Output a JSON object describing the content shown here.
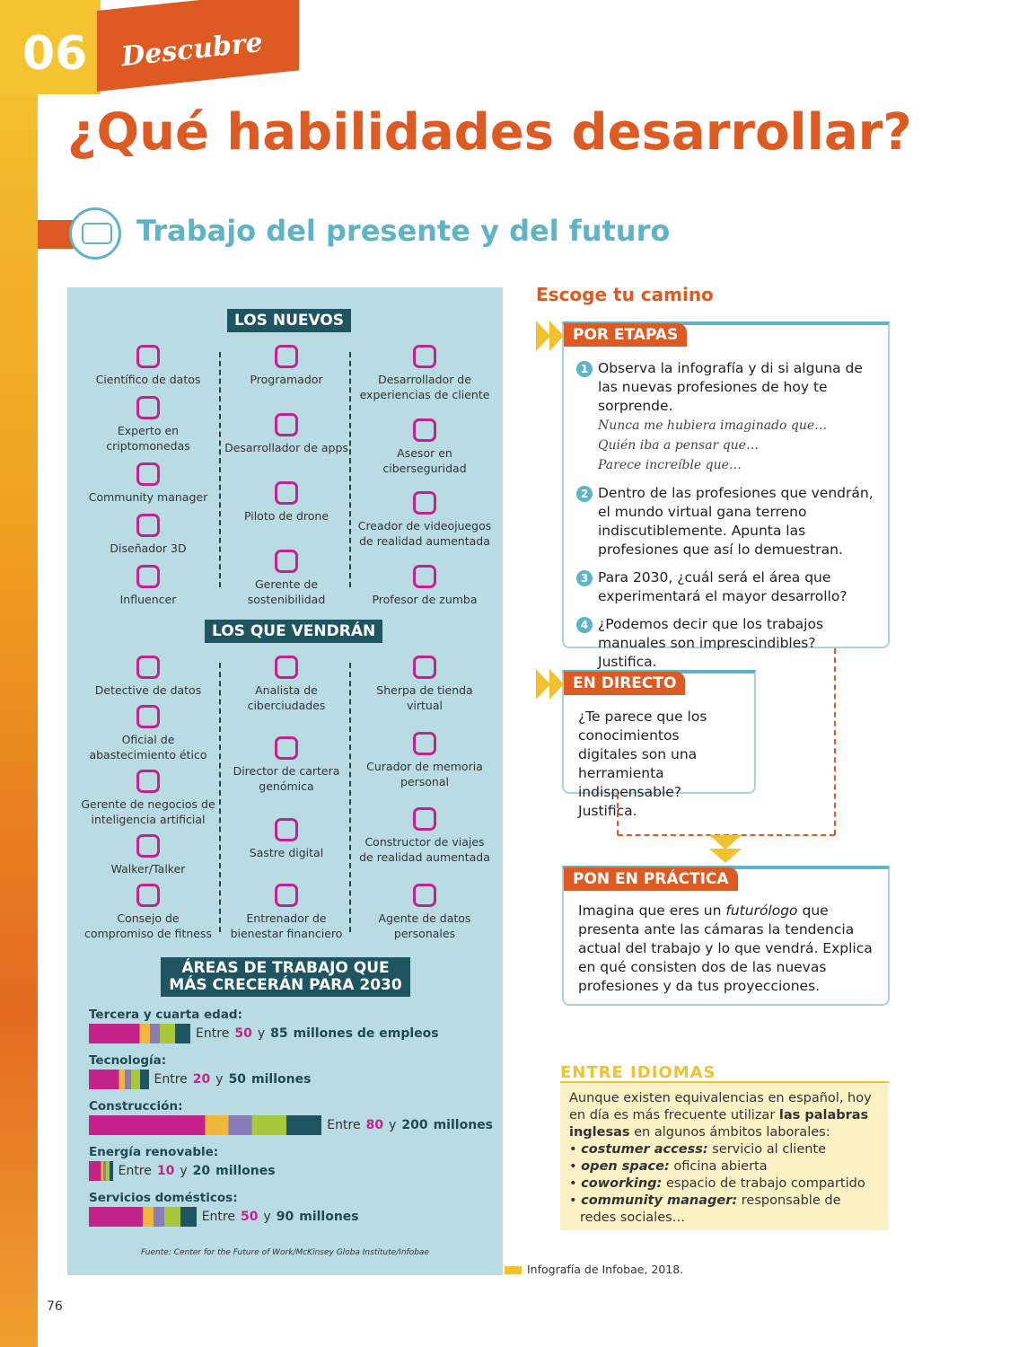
{
  "header": {
    "number": "06",
    "section": "Descubre",
    "title": "¿Qué habilidades desarrollar?"
  },
  "subtitle": "Trabajo del presente y del futuro",
  "infographic": {
    "nuevos": {
      "heading": "LOS NUEVOS",
      "columns": [
        [
          "Científico de datos",
          "Experto en criptomonedas",
          "Community manager",
          "Diseñador 3D",
          "Influencer"
        ],
        [
          "Programador",
          "Desarrollador de apps",
          "Piloto de drone",
          "Gerente de sostenibilidad"
        ],
        [
          "Desarrollador de experiencias de cliente",
          "Asesor en ciberseguridad",
          "Creador de videojuegos de realidad aumentada",
          "Profesor de zumba"
        ]
      ]
    },
    "vendran": {
      "heading": "LOS QUE VENDRÁN",
      "columns": [
        [
          "Detective de datos",
          "Oficial de abastecimiento ético",
          "Gerente de negocios de inteligencia artificial",
          "Walker/Talker",
          "Consejo de compromiso de fitness"
        ],
        [
          "Analista de ciberciudades",
          "Director de cartera genómica",
          "Sastre digital",
          "Entrenador de bienestar financiero"
        ],
        [
          "Sherpa de tienda virtual",
          "Curador de memoria personal",
          "Constructor de viajes de realidad aumentada",
          "Agente de datos personales"
        ]
      ]
    },
    "areas": {
      "heading": "ÁREAS DE TRABAJO QUE MÁS CRECERÁN PARA 2030",
      "rows": [
        {
          "label": "Tercera y cuarta edad:",
          "prefix": "Entre",
          "min": 50,
          "joiner": "y",
          "max": 85,
          "suffix": "millones de empleos"
        },
        {
          "label": "Tecnología:",
          "prefix": "Entre",
          "min": 20,
          "joiner": "y",
          "max": 50,
          "suffix": "millones"
        },
        {
          "label": "Construcción:",
          "prefix": "Entre",
          "min": 80,
          "joiner": "y",
          "max": 200,
          "suffix": "millones"
        },
        {
          "label": "Energía renovable:",
          "prefix": "Entre",
          "min": 10,
          "joiner": "y",
          "max": 20,
          "suffix": "millones"
        },
        {
          "label": "Servicios domésticos:",
          "prefix": "Entre",
          "min": 50,
          "joiner": "y",
          "max": 90,
          "suffix": "millones"
        }
      ]
    },
    "source": "Fuente: Center for the Future of Work/McKinsey Globa Institute/Infobae"
  },
  "activities": {
    "heading": "Escoge tu camino",
    "por_etapas": {
      "label": "POR ETAPAS",
      "items": [
        {
          "number": "1",
          "text": "Observa la infografía y di si alguna de las nuevas profesiones de hoy te sorprende.",
          "examples": [
            "Nunca me hubiera imaginado que…",
            "Quién iba a pensar que…",
            "Parece increíble que…"
          ]
        },
        {
          "number": "2",
          "text": "Dentro de las profesiones que vendrán, el mundo virtual gana terreno indiscutiblemente. Apunta las profesiones que así lo demuestran."
        },
        {
          "number": "3",
          "text": "Para 2030, ¿cuál será el área que experimentará el mayor desarrollo?"
        },
        {
          "number": "4",
          "text": "¿Podemos decir que los trabajos manuales son imprescindibles? Justifica."
        }
      ]
    },
    "en_directo": {
      "label": "EN DIRECTO",
      "text": "¿Te parece que los conocimientos digitales son una herramienta indispensable? Justifica."
    },
    "pon_en_practica": {
      "label": "PON EN PRÁCTICA",
      "text_before": "Imagina que eres un",
      "text_italic": "futurólogo",
      "text_after": "que presenta ante las cámaras la tendencia actual del trabajo y lo que vendrá. Explica en qué consisten dos de las nuevas profesiones y da tus proyecciones."
    }
  },
  "entre_idiomas": {
    "heading": "ENTRE IDIOMAS",
    "intro_before": "Aunque existen equivalencias en español, hoy en día es más frecuente utilizar",
    "intro_bold": "las palabras inglesas",
    "intro_after": "en algunos ámbitos laborales:",
    "items": [
      {
        "term": "costumer access:",
        "definition": "servicio al cliente"
      },
      {
        "term": "open space:",
        "definition": "oficina abierta"
      },
      {
        "term": "coworking:",
        "definition": "espacio de trabajo compartido"
      },
      {
        "term": "community manager:",
        "definition": "responsable de redes sociales…"
      }
    ]
  },
  "credit": "Infografía de Infobae, 2018.",
  "page_number": "76"
}
